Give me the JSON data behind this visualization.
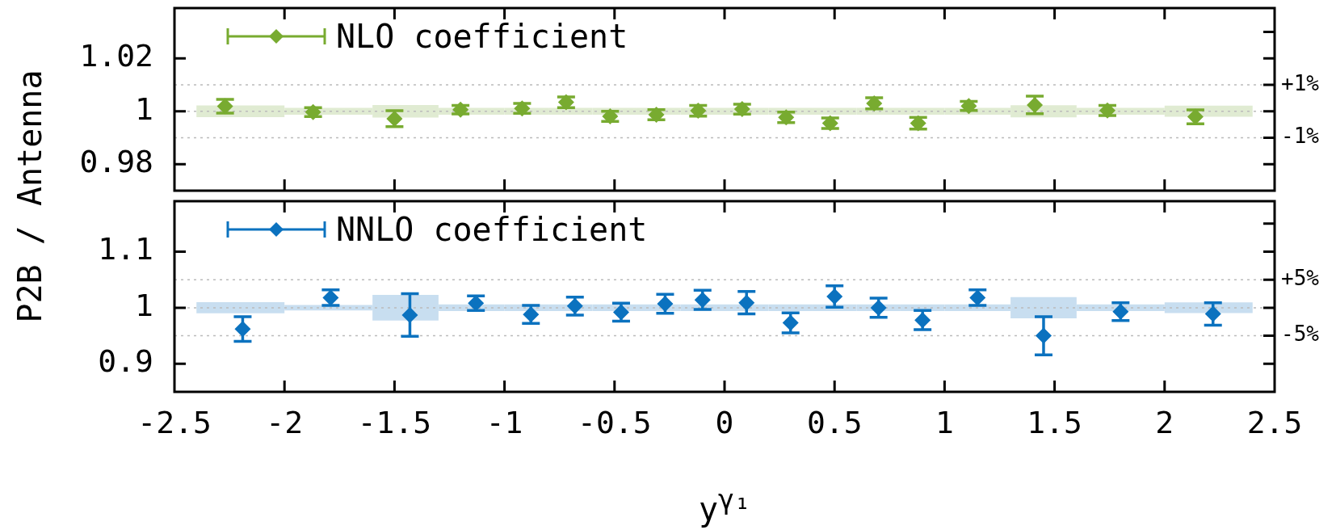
{
  "chart_data": [
    {
      "type": "scatter",
      "ylabel": "P2B / Antenna",
      "xlim": [
        -2.5,
        2.5
      ],
      "xticks": [
        -2.5,
        -2,
        -1.5,
        -1,
        -0.5,
        0,
        0.5,
        1,
        1.5,
        2,
        2.5
      ],
      "ylim": [
        0.97,
        1.039
      ],
      "yticks": [
        0.98,
        1,
        1.02
      ],
      "y2lim": [
        -3,
        3.9
      ],
      "y2ticks": [
        {
          "value": 3,
          "label": null
        },
        {
          "value": 2,
          "label": null
        },
        {
          "value": 1,
          "label": "+1%"
        },
        {
          "value": 0,
          "label": null
        },
        {
          "value": -1,
          "label": "-1%"
        },
        {
          "value": -2,
          "label": null
        }
      ],
      "tick_labels": "y",
      "legend": "top left",
      "marker": "diamond",
      "grid": false,
      "ref_lines": [
        {
          "axis": "y2",
          "value": 1,
          "color": "#bbbbbb",
          "line_style": "dotted"
        },
        {
          "axis": "y2",
          "value": 0,
          "color": "#bbbbbb",
          "line_style": "dotted"
        },
        {
          "axis": "y2",
          "value": -1,
          "color": "#bbbbbb",
          "line_style": "dotted"
        }
      ],
      "series": [
        {
          "type": "histogram",
          "color": "#e0ebd2",
          "bins": [
            -2.4,
            -2,
            -1.6,
            -1.3,
            -1,
            -0.8,
            -0.6,
            -0.4,
            -0.2,
            0,
            0.2,
            0.4,
            0.6,
            0.8,
            1,
            1.3,
            1.6,
            2,
            2.4
          ],
          "base": [
            0.9978,
            0.9987,
            0.9976,
            0.9987,
            0.9987,
            0.9987,
            0.9987,
            0.9987,
            0.9987,
            0.9987,
            0.9987,
            0.9987,
            0.9987,
            0.9987,
            0.9987,
            0.9977,
            0.9987,
            0.9979
          ],
          "values": [
            0.0044,
            0.0026,
            0.0048,
            0.0026,
            0.0026,
            0.0026,
            0.0026,
            0.0026,
            0.0026,
            0.0026,
            0.0026,
            0.0026,
            0.0026,
            0.0026,
            0.0026,
            0.0046,
            0.0026,
            0.0042
          ]
        },
        {
          "type": "scatter",
          "name": "NLO coefficient",
          "color": "#78ab30",
          "x": [
            -2.27,
            -1.87,
            -1.5,
            -1.2,
            -0.92,
            -0.72,
            -0.52,
            -0.31,
            -0.12,
            0.08,
            0.28,
            0.48,
            0.68,
            0.88,
            1.11,
            1.41,
            1.74,
            2.14
          ],
          "values": [
            1.0019,
            0.9997,
            0.9972,
            1.0006,
            1.0011,
            1.0034,
            0.9981,
            0.9987,
            1.0002,
            1.0008,
            0.9977,
            0.9955,
            1.003,
            0.9955,
            1.002,
            1.0024,
            1.0003,
            0.9979
          ],
          "errors": [
            0.0026,
            0.0017,
            0.003,
            0.0016,
            0.0019,
            0.002,
            0.0019,
            0.0019,
            0.002,
            0.0019,
            0.002,
            0.002,
            0.0021,
            0.0022,
            0.0017,
            0.0033,
            0.0019,
            0.0026
          ]
        }
      ]
    },
    {
      "type": "scatter",
      "xlabel": "y$^{γ₁}$",
      "xlim": [
        -2.5,
        2.5
      ],
      "xticks": [
        -2.5,
        -2,
        -1.5,
        -1,
        -0.5,
        0,
        0.5,
        1,
        1.5,
        2,
        2.5
      ],
      "ylim": [
        0.85,
        1.19
      ],
      "yticks": [
        0.9,
        1,
        1.1
      ],
      "y2lim": [
        -15,
        19
      ],
      "y2ticks": [
        {
          "value": 15,
          "label": null
        },
        {
          "value": 10,
          "label": null
        },
        {
          "value": 5,
          "label": "+5%"
        },
        {
          "value": 0,
          "label": null
        },
        {
          "value": -5,
          "label": "-5%"
        },
        {
          "value": -10,
          "label": null
        }
      ],
      "legend": "top left",
      "marker": "diamond",
      "grid": false,
      "ref_lines": [
        {
          "axis": "y2",
          "value": 5,
          "color": "#bbbbbb",
          "line_style": "dotted"
        },
        {
          "axis": "y2",
          "value": 0,
          "color": "#bbbbbb",
          "line_style": "dotted"
        },
        {
          "axis": "y2",
          "value": -5,
          "color": "#bbbbbb",
          "line_style": "dotted"
        }
      ],
      "series": [
        {
          "type": "histogram",
          "color": "#c8def0",
          "bins": [
            -2.4,
            -2,
            -1.6,
            -1.3,
            -1,
            -0.8,
            -0.6,
            -0.4,
            -0.2,
            0,
            0.2,
            0.4,
            0.6,
            0.8,
            1,
            1.3,
            1.6,
            2,
            2.4
          ],
          "base": [
            0.99,
            0.995,
            0.977,
            0.994,
            0.994,
            0.994,
            0.994,
            0.994,
            0.994,
            0.994,
            0.994,
            0.994,
            0.994,
            0.994,
            0.994,
            0.981,
            0.994,
            0.9905
          ],
          "values": [
            0.02,
            0.01,
            0.046,
            0.012,
            0.012,
            0.012,
            0.012,
            0.012,
            0.012,
            0.012,
            0.012,
            0.012,
            0.012,
            0.012,
            0.012,
            0.038,
            0.012,
            0.019
          ]
        },
        {
          "type": "scatter",
          "name": "NNLO coefficient",
          "color": "#0b72bf",
          "x": [
            -2.19,
            -1.79,
            -1.43,
            -1.13,
            -0.88,
            -0.68,
            -0.47,
            -0.27,
            -0.1,
            0.1,
            0.3,
            0.5,
            0.7,
            0.9,
            1.15,
            1.45,
            1.8,
            2.22
          ],
          "values": [
            0.962,
            1.018,
            0.987,
            1.008,
            0.988,
            1.003,
            0.992,
            1.007,
            1.014,
            1.009,
            0.973,
            1.02,
            1.0,
            0.978,
            1.018,
            0.95,
            0.993,
            0.989
          ],
          "errors": [
            0.022,
            0.014,
            0.038,
            0.013,
            0.016,
            0.016,
            0.016,
            0.017,
            0.017,
            0.02,
            0.018,
            0.019,
            0.017,
            0.017,
            0.014,
            0.034,
            0.016,
            0.02
          ]
        }
      ]
    }
  ]
}
